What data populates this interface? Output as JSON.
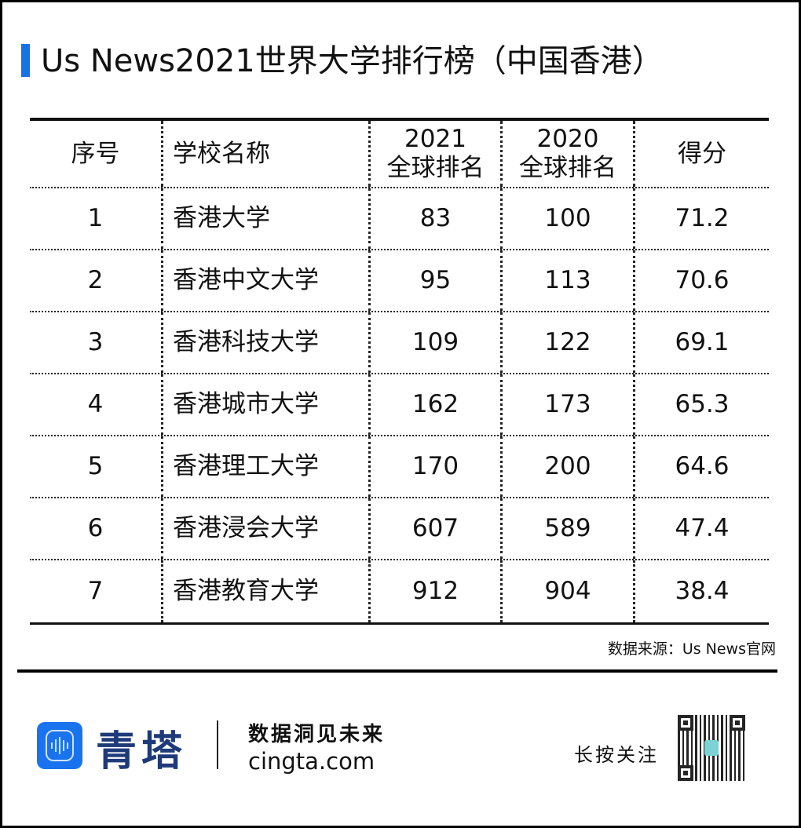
{
  "title": "Us News2021世界大学排行榜（中国香港）",
  "accent_color": "#1473e6",
  "table": {
    "headers": [
      "序号",
      "学校名称",
      "2021\n全球排名",
      "2020\n全球排名",
      "得分"
    ],
    "rows": [
      [
        "1",
        "香港大学",
        "83",
        "100",
        "71.2"
      ],
      [
        "2",
        "香港中文大学",
        "95",
        "113",
        "70.6"
      ],
      [
        "3",
        "香港科技大学",
        "109",
        "122",
        "69.1"
      ],
      [
        "4",
        "香港城市大学",
        "162",
        "173",
        "65.3"
      ],
      [
        "5",
        "香港理工大学",
        "170",
        "200",
        "64.6"
      ],
      [
        "6",
        "香港浸会大学",
        "607",
        "589",
        "47.4"
      ],
      [
        "7",
        "香港教育大学",
        "912",
        "904",
        "38.4"
      ]
    ]
  },
  "source": "数据来源：Us News官网",
  "footer": {
    "brand": "青塔",
    "slogan": "数据洞见未来",
    "site": "cingta.com",
    "follow": "长按关注",
    "logo_icon": "soundwave-hexagon-icon"
  }
}
